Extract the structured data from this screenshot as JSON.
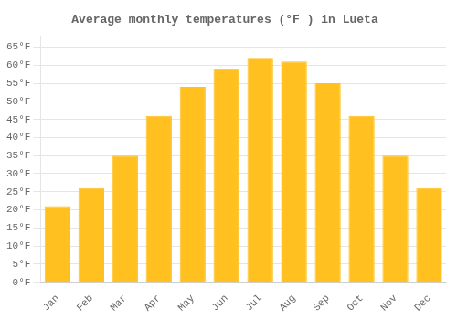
{
  "chart_data": {
    "type": "bar",
    "title": "Average monthly temperatures (°F ) in Lueta",
    "categories": [
      "Jan",
      "Feb",
      "Mar",
      "Apr",
      "May",
      "Jun",
      "Jul",
      "Aug",
      "Sep",
      "Oct",
      "Nov",
      "Dec"
    ],
    "values": [
      21,
      26,
      35,
      46,
      54,
      59,
      62,
      61,
      55,
      46,
      35,
      26
    ],
    "color": "#FFC020",
    "ylim": [
      0,
      68
    ],
    "yticks": [
      {
        "value": 0,
        "label": "0°F"
      },
      {
        "value": 5,
        "label": "5°F"
      },
      {
        "value": 10,
        "label": "10°F"
      },
      {
        "value": 15,
        "label": "15°F"
      },
      {
        "value": 20,
        "label": "20°F"
      },
      {
        "value": 25,
        "label": "25°F"
      },
      {
        "value": 30,
        "label": "30°F"
      },
      {
        "value": 35,
        "label": "35°F"
      },
      {
        "value": 40,
        "label": "40°F"
      },
      {
        "value": 45,
        "label": "45°F"
      },
      {
        "value": 50,
        "label": "50°F"
      },
      {
        "value": 55,
        "label": "55°F"
      },
      {
        "value": 60,
        "label": "60°F"
      },
      {
        "value": 65,
        "label": "65°F"
      }
    ],
    "grid": true
  }
}
